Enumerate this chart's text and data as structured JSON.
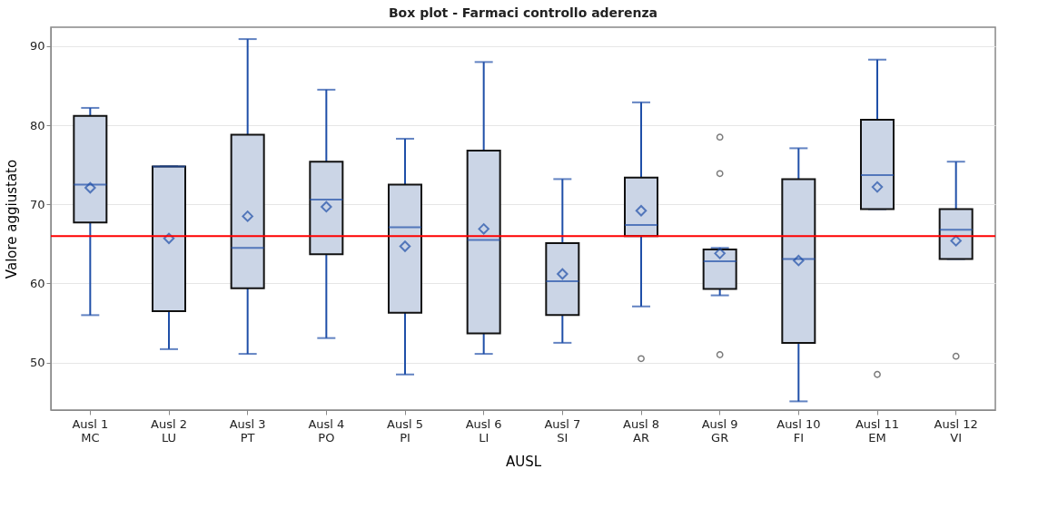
{
  "chart_data": {
    "type": "box",
    "title": "Box plot - Farmaci controllo aderenza",
    "xlabel": "AUSL",
    "ylabel": "Valore aggiustato",
    "categories": [
      "Ausl 1\nMC",
      "Ausl 2\nLU",
      "Ausl 3\nPT",
      "Ausl 4\nPO",
      "Ausl 5\nPI",
      "Ausl 6\nLI",
      "Ausl 7\nSI",
      "Ausl 8\nAR",
      "Ausl 9\nGR",
      "Ausl 10\nFI",
      "Ausl 11\nEM",
      "Ausl 12\nVI"
    ],
    "boxes": [
      {
        "low": 56.0,
        "q1": 67.7,
        "median": 72.5,
        "q3": 81.2,
        "high": 82.2,
        "mean": 72.1
      },
      {
        "low": 51.7,
        "q1": 56.5,
        "median": 74.8,
        "q3": 74.8,
        "high": 74.8,
        "mean": 65.7
      },
      {
        "low": 51.1,
        "q1": 59.4,
        "median": 64.5,
        "q3": 78.8,
        "high": 90.9,
        "mean": 68.5
      },
      {
        "low": 53.1,
        "q1": 63.7,
        "median": 70.6,
        "q3": 75.4,
        "high": 84.5,
        "mean": 69.7
      },
      {
        "low": 48.5,
        "q1": 56.3,
        "median": 67.1,
        "q3": 72.5,
        "high": 78.3,
        "mean": 64.7
      },
      {
        "low": 51.1,
        "q1": 53.7,
        "median": 65.5,
        "q3": 76.8,
        "high": 88.0,
        "mean": 66.9
      },
      {
        "low": 52.5,
        "q1": 56.0,
        "median": 60.3,
        "q3": 65.1,
        "high": 73.2,
        "mean": 61.2
      },
      {
        "low": 57.1,
        "q1": 66.0,
        "median": 67.4,
        "q3": 73.4,
        "high": 82.9,
        "mean": 69.2,
        "outliers": [
          50.5
        ]
      },
      {
        "low": 58.5,
        "q1": 59.3,
        "median": 62.8,
        "q3": 64.3,
        "high": 64.5,
        "mean": 63.8,
        "outliers": [
          78.5,
          73.9,
          51.0
        ]
      },
      {
        "low": 45.1,
        "q1": 52.5,
        "median": 63.1,
        "q3": 73.2,
        "high": 77.1,
        "mean": 62.9
      },
      {
        "low": 69.4,
        "q1": 69.4,
        "median": 73.7,
        "q3": 80.7,
        "high": 88.3,
        "mean": 72.2,
        "outliers": [
          48.5
        ]
      },
      {
        "low": 63.1,
        "q1": 63.1,
        "median": 66.8,
        "q3": 69.4,
        "high": 75.4,
        "mean": 65.4,
        "outliers": [
          50.8
        ]
      }
    ],
    "color": "#cbd5e6",
    "ylim": [
      44,
      92.4
    ],
    "yticks": [
      50,
      60,
      70,
      80,
      90
    ],
    "grid": "y",
    "ref_lines": [
      {
        "axis": "y",
        "value": 66.0,
        "color": "#ff0000"
      }
    ]
  }
}
